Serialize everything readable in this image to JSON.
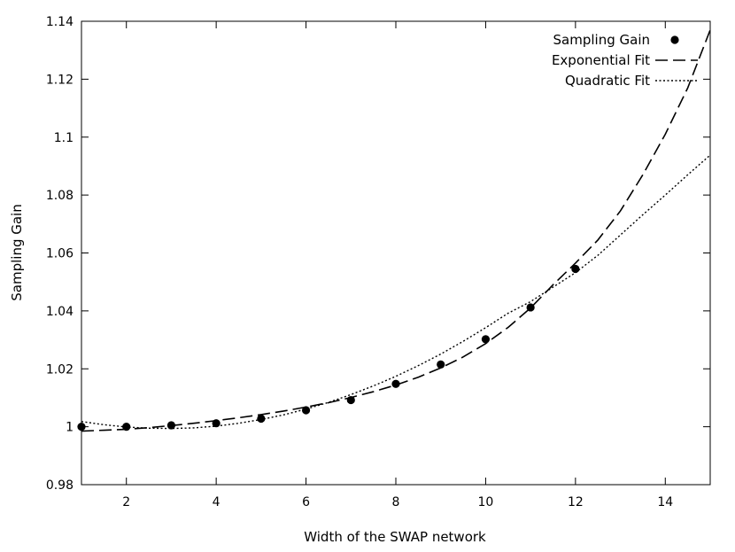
{
  "chart_data": {
    "type": "scatter",
    "title": "",
    "xlabel": "Width of the SWAP network",
    "ylabel": "Sampling Gain",
    "xlim": [
      1,
      15
    ],
    "ylim": [
      0.98,
      1.14
    ],
    "x_ticks": [
      2,
      4,
      6,
      8,
      10,
      12,
      14
    ],
    "y_ticks": [
      0.98,
      1.0,
      1.02,
      1.04,
      1.06,
      1.08,
      1.1,
      1.12,
      1.14
    ],
    "y_tick_labels": [
      "0.98",
      "1",
      "1.02",
      "1.04",
      "1.06",
      "1.08",
      "1.1",
      "1.12",
      "1.14"
    ],
    "grid": false,
    "legend_position": "top-right",
    "series": [
      {
        "name": "Sampling Gain",
        "kind": "points",
        "x": [
          1,
          2,
          3,
          4,
          5,
          6,
          7,
          8,
          9,
          10,
          11,
          12
        ],
        "y": [
          1.0,
          1.0,
          1.0005,
          1.0012,
          1.0028,
          1.0057,
          1.0092,
          1.0148,
          1.0215,
          1.0302,
          1.0412,
          1.0545
        ]
      },
      {
        "name": "Exponential Fit",
        "kind": "dashed-line",
        "x": [
          1,
          1.5,
          2,
          2.5,
          3,
          3.5,
          4,
          4.5,
          5,
          5.5,
          6,
          6.5,
          7,
          7.5,
          8,
          8.5,
          9,
          9.5,
          10,
          10.5,
          11,
          11.5,
          12,
          12.5,
          13,
          13.5,
          14,
          14.5,
          15
        ],
        "y": [
          0.9985,
          0.9988,
          0.9991,
          0.9997,
          1.0004,
          1.0012,
          1.0021,
          1.0031,
          1.0042,
          1.0054,
          1.0068,
          1.0083,
          1.0101,
          1.0121,
          1.0144,
          1.0171,
          1.0203,
          1.0241,
          1.0287,
          1.0343,
          1.041,
          1.049,
          1.0565,
          1.0645,
          1.0745,
          1.087,
          1.101,
          1.117,
          1.137
        ]
      },
      {
        "name": "Quadratic Fit",
        "kind": "dotted-line",
        "x": [
          1,
          1.5,
          2,
          2.5,
          3,
          3.5,
          4,
          4.5,
          5,
          5.5,
          6,
          6.5,
          7,
          7.5,
          8,
          8.5,
          9,
          9.5,
          10,
          10.5,
          11,
          11.5,
          12,
          12.5,
          13,
          13.5,
          14,
          14.5,
          15
        ],
        "y": [
          1.0018,
          1.0007,
          0.9999,
          0.9995,
          0.9994,
          0.9996,
          1.0002,
          1.0012,
          1.0025,
          1.0041,
          1.0061,
          1.0084,
          1.0111,
          1.0141,
          1.0174,
          1.0211,
          1.0251,
          1.0295,
          1.0342,
          1.0392,
          1.0432,
          1.0482,
          1.0532,
          1.0592,
          1.0662,
          1.0732,
          1.08,
          1.087,
          1.0938
        ]
      }
    ]
  }
}
